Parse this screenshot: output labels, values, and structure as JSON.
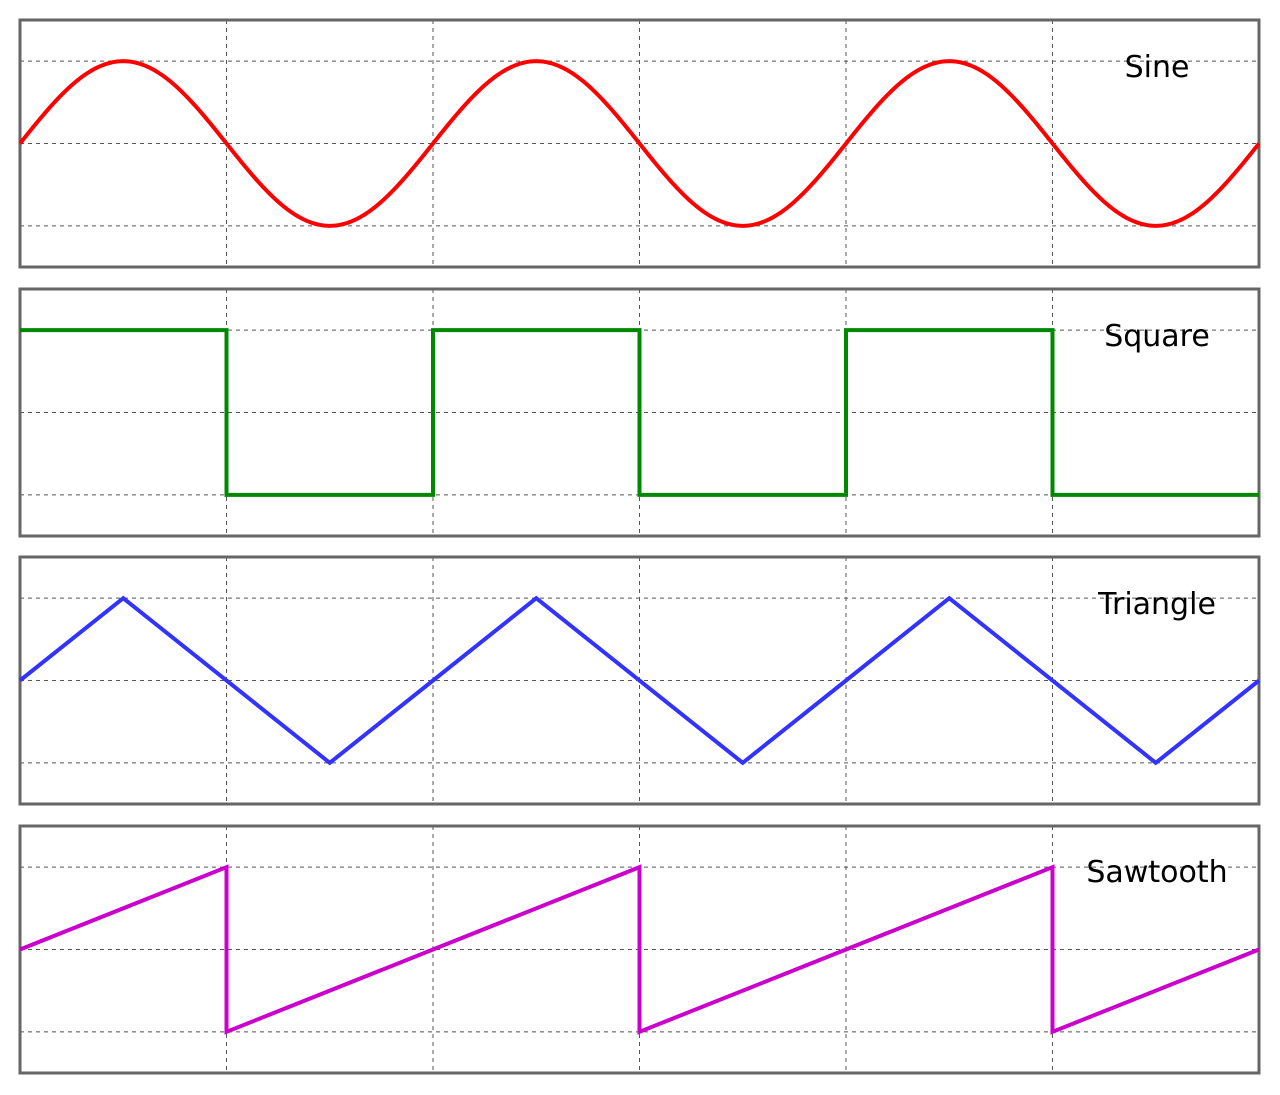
{
  "chart_data": [
    {
      "type": "line",
      "title": "Sine",
      "color": "#ff0000",
      "waveform": "sine",
      "periods": 3,
      "amplitude": 1,
      "xlim": [
        0,
        3
      ],
      "ylim": [
        -1.5,
        1.5
      ],
      "grid": true,
      "x_gridlines": [
        0.5,
        1.0,
        1.5,
        2.0,
        2.5
      ],
      "y_gridlines": [
        -1,
        0,
        1
      ]
    },
    {
      "type": "line",
      "title": "Square",
      "color": "#008800",
      "waveform": "square",
      "periods": 3,
      "amplitude": 1,
      "xlim": [
        0,
        3
      ],
      "ylim": [
        -1.5,
        1.5
      ],
      "grid": true,
      "x_gridlines": [
        0.5,
        1.0,
        1.5,
        2.0,
        2.5
      ],
      "y_gridlines": [
        -1,
        0,
        1
      ]
    },
    {
      "type": "line",
      "title": "Triangle",
      "color": "#3333ff",
      "waveform": "triangle",
      "periods": 3,
      "amplitude": 1,
      "xlim": [
        0,
        3
      ],
      "ylim": [
        -1.5,
        1.5
      ],
      "grid": true,
      "x_gridlines": [
        0.5,
        1.0,
        1.5,
        2.0,
        2.5
      ],
      "y_gridlines": [
        -1,
        0,
        1
      ]
    },
    {
      "type": "line",
      "title": "Sawtooth",
      "color": "#cc00cc",
      "waveform": "sawtooth",
      "periods": 3,
      "amplitude": 1,
      "xlim": [
        0,
        3
      ],
      "ylim": [
        -1.5,
        1.5
      ],
      "grid": true,
      "x_gridlines": [
        0.5,
        1.0,
        1.5,
        2.0,
        2.5
      ],
      "y_gridlines": [
        -1,
        0,
        1
      ]
    }
  ]
}
